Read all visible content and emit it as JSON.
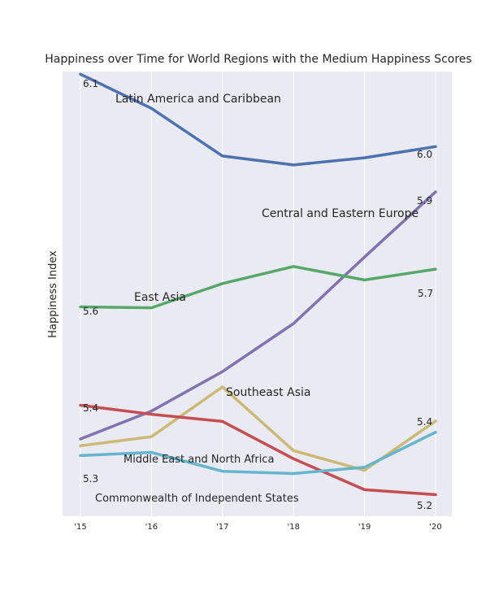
{
  "chart_data": {
    "type": "line",
    "title": "Happiness over Time for World Regions with the Medium Happiness Scores",
    "xlabel": "",
    "ylabel": "Happiness Index",
    "x": [
      "'15",
      "'16",
      "'17",
      "'18",
      "'19",
      "'20"
    ],
    "ylim": [
      5.16,
      6.15
    ],
    "grid": true,
    "series": [
      {
        "name": "Latin America and Caribbean",
        "color": "#4c72b0",
        "values": [
          6.144,
          6.068,
          5.962,
          5.942,
          5.958,
          5.983
        ]
      },
      {
        "name": "Central and Eastern Europe",
        "color": "#8172b2",
        "values": [
          5.332,
          5.394,
          5.482,
          5.589,
          5.737,
          5.882
        ]
      },
      {
        "name": "East Asia",
        "color": "#55a868",
        "values": [
          5.626,
          5.624,
          5.678,
          5.716,
          5.686,
          5.71
        ]
      },
      {
        "name": "Southeast Asia",
        "color": "#ccb974",
        "values": [
          5.317,
          5.337,
          5.448,
          5.306,
          5.262,
          5.372
        ]
      },
      {
        "name": "Middle East and North Africa",
        "color": "#c44e52",
        "values": [
          5.407,
          5.387,
          5.371,
          5.288,
          5.219,
          5.208
        ]
      },
      {
        "name": "Commonwealth of Independent States",
        "color": "#64b5cd",
        "values": [
          5.295,
          5.302,
          5.26,
          5.255,
          5.269,
          5.347
        ]
      }
    ],
    "annotations": [
      {
        "text": "Latin America and Caribbean"
      },
      {
        "text": "Central and Eastern Europe"
      },
      {
        "text": "East Asia"
      },
      {
        "text": "Southeast Asia"
      },
      {
        "text": "Middle East and North Africa"
      },
      {
        "text": "Commonwealth of Independent States"
      }
    ],
    "value_labels": [
      "6.1",
      "6.0",
      "5.9",
      "5.6",
      "5.7",
      "5.4",
      "5.4",
      "5.3",
      "5.2"
    ],
    "background": "#eaeaf2"
  }
}
